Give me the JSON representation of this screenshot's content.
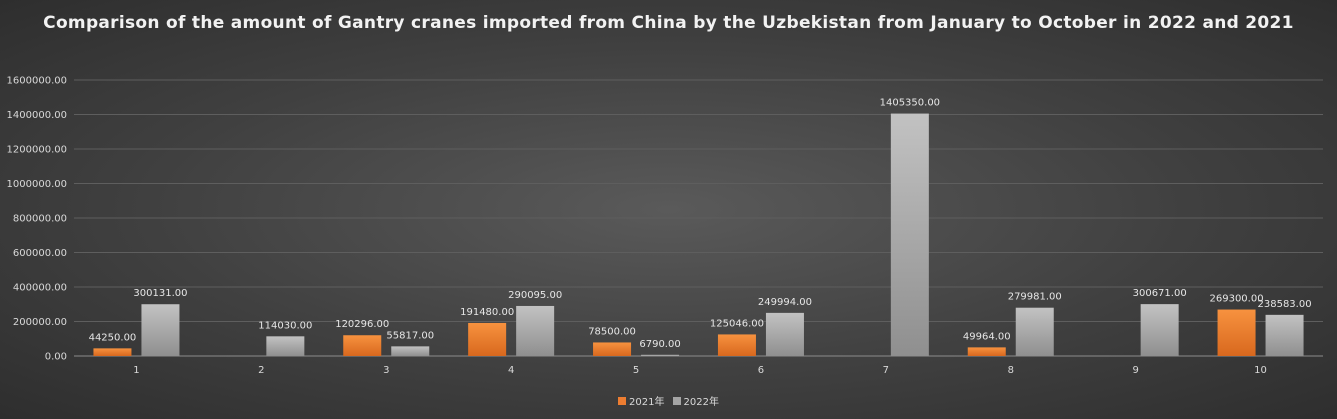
{
  "chart_data": {
    "type": "bar",
    "title": "Comparison of the amount of Gantry cranes imported from China by the Uzbekistan from January to October in 2022 and 2021",
    "categories": [
      "1",
      "2",
      "3",
      "4",
      "5",
      "6",
      "7",
      "8",
      "9",
      "10"
    ],
    "series": [
      {
        "name": "2021年",
        "color": "#ed7d31",
        "values": [
          44250.0,
          null,
          120296.0,
          191480.0,
          78500.0,
          125046.0,
          null,
          49964.0,
          null,
          269300.0
        ],
        "labels": [
          "44250.00",
          "",
          "120296.00",
          "191480.00",
          "78500.00",
          "125046.00",
          "",
          "49964.00",
          "",
          "269300.00"
        ]
      },
      {
        "name": "2022年",
        "color": "#a5a5a5",
        "values": [
          300131.0,
          114030.0,
          55817.0,
          290095.0,
          6790.0,
          249994.0,
          1405350.0,
          279981.0,
          300671.0,
          238583.0
        ],
        "labels": [
          "300131.00",
          "114030.00",
          "55817.00",
          "290095.00",
          "6790.00",
          "249994.00",
          "1405350.00",
          "279981.00",
          "300671.00",
          "238583.00"
        ]
      }
    ],
    "ylim": [
      0,
      1600000
    ],
    "yticks": [
      "0.00",
      "200000.00",
      "400000.00",
      "600000.00",
      "800000.00",
      "1000000.00",
      "1200000.00",
      "1400000.00",
      "1600000.00"
    ],
    "grid": true,
    "legend_position": "bottom"
  }
}
